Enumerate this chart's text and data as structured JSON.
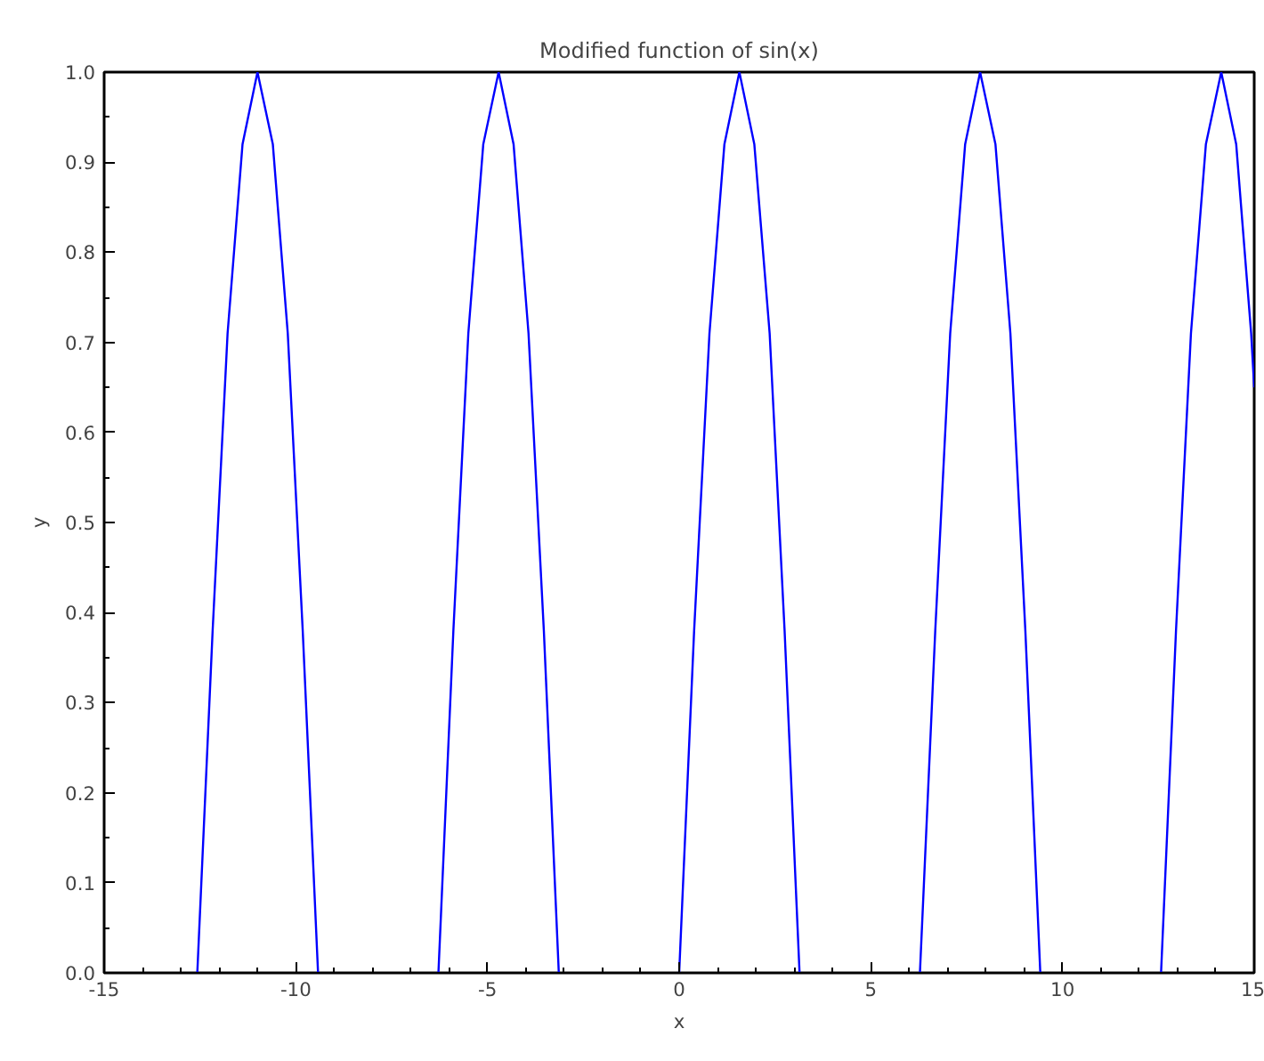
{
  "chart_data": {
    "type": "line",
    "title": "Modified function of sin(x)",
    "xlabel": "x",
    "ylabel": "y",
    "x": [
      -12.57,
      -12.17,
      -11.78,
      -11.39,
      -11.0,
      -10.6,
      -10.21,
      -9.82,
      -9.42,
      -8,
      -6.28,
      -5.89,
      -5.5,
      -5.11,
      -4.71,
      -4.32,
      -3.93,
      -3.53,
      -3.14,
      -2,
      0,
      0.39,
      0.79,
      1.18,
      1.57,
      1.96,
      2.36,
      2.75,
      3.14,
      5,
      6.28,
      6.68,
      7.07,
      7.46,
      7.85,
      8.25,
      8.64,
      9.03,
      9.42,
      11,
      12.57,
      12.96,
      13.35,
      13.74,
      14.14,
      14.53,
      14.92,
      15
    ],
    "series": [
      {
        "color": "#0000ff",
        "values": [
          0,
          0.38,
          0.71,
          0.92,
          1,
          0.92,
          0.71,
          0.38,
          0,
          null,
          0,
          0.38,
          0.71,
          0.92,
          1,
          0.92,
          0.71,
          0.38,
          0,
          null,
          0,
          0.38,
          0.71,
          0.92,
          1,
          0.92,
          0.71,
          0.38,
          0,
          null,
          0,
          0.38,
          0.71,
          0.92,
          1,
          0.92,
          0.71,
          0.38,
          0,
          null,
          0,
          0.38,
          0.71,
          0.92,
          1,
          0.92,
          0.71,
          0.65
        ]
      }
    ],
    "xlim": [
      -15,
      15
    ],
    "ylim": [
      0,
      1
    ],
    "xticks": [
      -15,
      -10,
      -5,
      0,
      5,
      10,
      15
    ],
    "yticks": [
      {
        "value": 0,
        "label": "0.0"
      },
      {
        "value": 0.1,
        "label": "0.1"
      },
      {
        "value": 0.2,
        "label": "0.2"
      },
      {
        "value": 0.3,
        "label": "0.3"
      },
      {
        "value": 0.4,
        "label": "0.4"
      },
      {
        "value": 0.5,
        "label": "0.5"
      },
      {
        "value": 0.6,
        "label": "0.6"
      },
      {
        "value": 0.7,
        "label": "0.7"
      },
      {
        "value": 0.8,
        "label": "0.8"
      },
      {
        "value": 0.9,
        "label": "0.9"
      },
      {
        "value": 1,
        "label": "1.0"
      }
    ],
    "grid": false,
    "marker": "none",
    "line_style": "solid"
  }
}
